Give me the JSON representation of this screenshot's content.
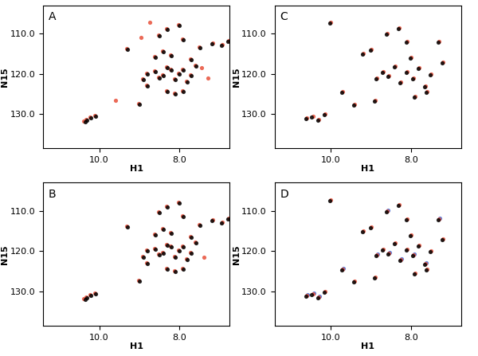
{
  "chart_data": [
    {
      "type": "scatter",
      "title": "A",
      "x_label": "H1",
      "y_label": "N15",
      "xlim": [
        11.4,
        6.75
      ],
      "ylim": [
        138.5,
        103
      ],
      "xticks": [
        {
          "value": 10.0,
          "label": "10.0"
        },
        {
          "value": 8.0,
          "label": "8.0"
        }
      ],
      "yticks": [
        {
          "value": 110,
          "label": "110.0"
        },
        {
          "value": 120,
          "label": "120.0"
        },
        {
          "value": 130,
          "label": "130.0"
        }
      ],
      "series": [
        {
          "color": "#e8503a",
          "marker": "o",
          "x": [
            10.32,
            10.22,
            10.12,
            10.38,
            9.02,
            8.92,
            8.82,
            8.62,
            8.52,
            8.42,
            8.32,
            8.22,
            8.12,
            8.02,
            7.92,
            7.82,
            7.72,
            7.62,
            8.52,
            8.32,
            8.02,
            7.92,
            7.18,
            6.93,
            6.78,
            7.52,
            8.22,
            8.42,
            8.62,
            7.72,
            8.32,
            8.12,
            7.92,
            8.82,
            9.32,
            9.6,
            8.75,
            7.45,
            8.95,
            7.3
          ],
          "values": [
            131.3,
            130.8,
            130.3,
            131.8,
            127.3,
            121.3,
            119.8,
            119.3,
            120.8,
            120.3,
            118.3,
            118.8,
            121.3,
            119.8,
            118.8,
            121.8,
            120.3,
            117.8,
            110.3,
            108.8,
            107.8,
            111.3,
            112.3,
            112.8,
            111.8,
            113.3,
            115.3,
            114.3,
            115.8,
            116.3,
            124.3,
            124.8,
            124.3,
            122.8,
            113.8,
            126.5,
            107.2,
            118.5,
            111.0,
            121.0
          ]
        },
        {
          "color": "#000000",
          "marker": "o",
          "x": [
            10.3,
            10.2,
            10.1,
            10.35,
            9.0,
            8.9,
            8.8,
            8.6,
            8.5,
            8.4,
            8.3,
            8.2,
            8.1,
            8.0,
            7.9,
            7.8,
            7.7,
            7.6,
            8.5,
            8.3,
            8.0,
            7.9,
            7.2,
            6.95,
            6.8,
            7.5,
            8.2,
            8.4,
            8.6,
            7.7,
            8.3,
            8.1,
            7.9,
            8.8,
            9.3
          ],
          "values": [
            131.5,
            131.0,
            130.5,
            132.0,
            127.5,
            121.5,
            120.0,
            119.5,
            121.0,
            120.5,
            118.5,
            119.0,
            121.5,
            120.0,
            119.0,
            122.0,
            120.5,
            118.0,
            110.5,
            109.0,
            108.0,
            111.5,
            112.5,
            113.0,
            112.0,
            113.5,
            115.5,
            114.5,
            116.0,
            116.5,
            124.5,
            125.0,
            124.5,
            123.0,
            114.0
          ]
        }
      ]
    },
    {
      "type": "scatter",
      "title": "C",
      "x_label": "H1",
      "y_label": "N15",
      "xlim": [
        11.4,
        6.75
      ],
      "ylim": [
        138.5,
        103
      ],
      "xticks": [
        {
          "value": 10.0,
          "label": "10.0"
        },
        {
          "value": 8.0,
          "label": "8.0"
        }
      ],
      "yticks": [
        {
          "value": 110,
          "label": "110.0"
        },
        {
          "value": 120,
          "label": "120.0"
        },
        {
          "value": 130,
          "label": "130.0"
        }
      ],
      "series": [
        {
          "color": "#e8503a",
          "marker": "o",
          "x": [
            10.6,
            10.45,
            10.3,
            10.15,
            10.0,
            9.7,
            9.4,
            9.2,
            9.0,
            8.85,
            8.7,
            8.55,
            8.4,
            8.25,
            8.1,
            7.95,
            7.8,
            7.65,
            7.5,
            8.6,
            8.3,
            8.1,
            7.6,
            7.3,
            8.9,
            8.0,
            7.9,
            7.2
          ],
          "values": [
            131.0,
            130.5,
            131.3,
            130.0,
            107.2,
            124.5,
            127.5,
            115.0,
            114.0,
            121.0,
            119.5,
            120.5,
            118.0,
            122.0,
            119.5,
            121.0,
            118.5,
            123.0,
            120.0,
            110.0,
            108.5,
            112.0,
            124.5,
            112.0,
            126.5,
            116.0,
            125.5,
            117.0
          ]
        },
        {
          "color": "#000000",
          "marker": "o",
          "x": [
            10.62,
            10.47,
            10.32,
            10.17,
            10.02,
            9.72,
            9.42,
            9.22,
            9.02,
            8.87,
            8.72,
            8.57,
            8.42,
            8.27,
            8.12,
            7.97,
            7.82,
            7.67,
            7.52,
            8.62,
            8.32,
            8.12,
            7.62,
            7.32,
            8.92,
            8.02,
            7.92,
            7.22
          ],
          "values": [
            131.2,
            130.7,
            131.5,
            130.2,
            107.4,
            124.7,
            127.7,
            115.2,
            114.2,
            121.2,
            119.7,
            120.7,
            118.2,
            122.2,
            119.7,
            121.2,
            118.7,
            123.2,
            120.2,
            110.2,
            108.7,
            112.2,
            124.7,
            112.2,
            126.7,
            116.2,
            125.7,
            117.2
          ]
        }
      ]
    },
    {
      "type": "scatter",
      "title": "B",
      "x_label": "H1",
      "y_label": "N15",
      "xlim": [
        11.4,
        6.75
      ],
      "ylim": [
        138.5,
        103
      ],
      "xticks": [
        {
          "value": 10.0,
          "label": "10.0"
        },
        {
          "value": 8.0,
          "label": "8.0"
        }
      ],
      "yticks": [
        {
          "value": 110,
          "label": "110.0"
        },
        {
          "value": 120,
          "label": "120.0"
        },
        {
          "value": 130,
          "label": "130.0"
        }
      ],
      "series": [
        {
          "color": "#e8503a",
          "marker": "o",
          "x": [
            10.32,
            10.22,
            10.12,
            10.38,
            9.02,
            8.92,
            8.82,
            8.62,
            8.52,
            8.42,
            8.32,
            8.22,
            8.12,
            8.02,
            7.92,
            7.82,
            7.72,
            7.62,
            8.52,
            8.32,
            8.02,
            7.92,
            7.18,
            6.93,
            6.78,
            7.52,
            8.22,
            8.42,
            8.62,
            7.72,
            8.32,
            8.12,
            7.92,
            8.82,
            9.32,
            7.4
          ],
          "values": [
            131.3,
            130.8,
            130.3,
            131.8,
            127.3,
            121.3,
            119.8,
            119.3,
            120.8,
            120.3,
            118.3,
            118.8,
            121.3,
            119.8,
            118.8,
            121.8,
            120.3,
            117.8,
            110.3,
            108.8,
            107.8,
            111.3,
            112.3,
            112.8,
            111.8,
            113.3,
            115.3,
            114.3,
            115.8,
            116.3,
            124.3,
            124.8,
            124.3,
            122.8,
            113.8,
            121.5
          ]
        },
        {
          "color": "#000000",
          "marker": "o",
          "x": [
            10.3,
            10.2,
            10.1,
            10.35,
            9.0,
            8.9,
            8.8,
            8.6,
            8.5,
            8.4,
            8.3,
            8.2,
            8.1,
            8.0,
            7.9,
            7.8,
            7.7,
            7.6,
            8.5,
            8.3,
            8.0,
            7.9,
            7.2,
            6.95,
            6.8,
            7.5,
            8.2,
            8.4,
            8.6,
            7.7,
            8.3,
            8.1,
            7.9,
            8.8,
            9.3
          ],
          "values": [
            131.5,
            131.0,
            130.5,
            132.0,
            127.5,
            121.5,
            120.0,
            119.5,
            121.0,
            120.5,
            118.5,
            119.0,
            121.5,
            120.0,
            119.0,
            122.0,
            120.5,
            118.0,
            110.5,
            109.0,
            108.0,
            111.5,
            112.5,
            113.0,
            112.0,
            113.5,
            115.5,
            114.5,
            116.0,
            116.5,
            124.5,
            125.0,
            124.5,
            123.0,
            114.0
          ]
        }
      ]
    },
    {
      "type": "scatter",
      "title": "D",
      "x_label": "H1",
      "y_label": "N15",
      "xlim": [
        11.4,
        6.75
      ],
      "ylim": [
        138.5,
        103
      ],
      "xticks": [
        {
          "value": 10.0,
          "label": "10.0"
        },
        {
          "value": 8.0,
          "label": "8.0"
        }
      ],
      "yticks": [
        {
          "value": 110,
          "label": "110.0"
        },
        {
          "value": 120,
          "label": "120.0"
        },
        {
          "value": 130,
          "label": "130.0"
        }
      ],
      "series": [
        {
          "color": "#4a6fd4",
          "marker": "o",
          "x": [
            10.58,
            10.43,
            10.28,
            9.68,
            8.83,
            8.53,
            8.23,
            7.93,
            7.63,
            7.28,
            8.58
          ],
          "values": [
            130.8,
            130.3,
            131.1,
            124.3,
            120.8,
            120.3,
            121.8,
            120.8,
            122.8,
            111.8,
            109.8
          ]
        },
        {
          "color": "#e8503a",
          "marker": "o",
          "x": [
            10.6,
            10.45,
            10.3,
            10.15,
            10.0,
            9.7,
            9.4,
            9.2,
            9.0,
            8.85,
            8.7,
            8.55,
            8.4,
            8.25,
            8.1,
            7.95,
            7.8,
            7.65,
            7.5,
            8.6,
            8.3,
            8.1,
            7.6,
            7.3,
            8.9,
            8.0,
            7.9,
            7.2
          ],
          "values": [
            131.0,
            130.5,
            131.3,
            130.0,
            107.2,
            124.5,
            127.5,
            115.0,
            114.0,
            121.0,
            119.5,
            120.5,
            118.0,
            122.0,
            119.5,
            121.0,
            118.5,
            123.0,
            120.0,
            110.0,
            108.5,
            112.0,
            124.5,
            112.0,
            126.5,
            116.0,
            125.5,
            117.0
          ]
        },
        {
          "color": "#000000",
          "marker": "o",
          "x": [
            10.62,
            10.47,
            10.32,
            10.17,
            10.02,
            9.72,
            9.42,
            9.22,
            9.02,
            8.87,
            8.72,
            8.57,
            8.42,
            8.27,
            8.12,
            7.97,
            7.82,
            7.67,
            7.52,
            8.62,
            8.32,
            8.12,
            7.62,
            7.32,
            8.92,
            8.02,
            7.92,
            7.22
          ],
          "values": [
            131.2,
            130.7,
            131.5,
            130.2,
            107.4,
            124.7,
            127.7,
            115.2,
            114.2,
            121.2,
            119.7,
            120.7,
            118.2,
            122.2,
            119.7,
            121.2,
            118.7,
            123.2,
            120.2,
            110.2,
            108.7,
            112.2,
            124.7,
            112.2,
            126.7,
            116.2,
            125.7,
            117.2
          ]
        }
      ]
    }
  ]
}
